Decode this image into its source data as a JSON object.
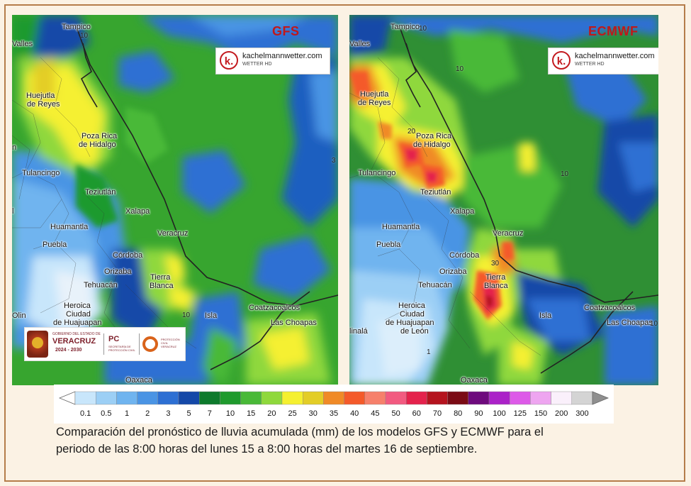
{
  "panels": {
    "gfs": {
      "title": "GFS",
      "brand_name": "kachelmannwetter.com",
      "brand_sub": "WETTER HD",
      "brand_letter": "k.",
      "cities": {
        "tampico": "Tampico",
        "valles": "Valles",
        "huejutla": "Huejutla",
        "de_reyes": "de Reyes",
        "poza_rica": "Poza Rica",
        "de_hidalgo": "de Hidalgo",
        "tulancingo": "Tulancingo",
        "teziutlan": "Teziutlán",
        "xalapa": "Xalapa",
        "huamantla": "Huamantla",
        "veracruz": "Veracruz",
        "puebla": "Puebla",
        "cordoba": "Córdoba",
        "orizaba": "Orizaba",
        "tierra": "Tierra",
        "blanca": "Blanca",
        "tehuacan": "Tehuacán",
        "heroica": "Heroica",
        "ciudad": "Ciudad",
        "de_huajuapan": "de Huajuapan",
        "isla": "Isla",
        "coatzacoalcos": "Coatzacoalcos",
        "las_choapas": "Las Choapas",
        "olin": "Olin",
        "oaxaca": "Oaxaca",
        "edge_n": "n",
        "edge_l": "l"
      },
      "contours": {
        "c10a": "10",
        "c10b": "10",
        "c3": "3"
      }
    },
    "ecmwf": {
      "title": "ECMWF",
      "brand_name": "kachelmannwetter.com",
      "brand_sub": "WETTER HD",
      "brand_letter": "k.",
      "cities": {
        "tampico": "Tampico",
        "valles": "Valles",
        "huejutla": "Huejutla",
        "de_reyes": "de Reyes",
        "poza_rica": "Poza Rica",
        "de_hidalgo": "de Hidalgo",
        "tulancingo": "Tulancingo",
        "teziutlan": "Teziutlán",
        "xalapa": "Xalapa",
        "huamantla": "Huamantla",
        "veracruz": "Veracruz",
        "puebla": "Puebla",
        "cordoba": "Córdoba",
        "orizaba": "Orizaba",
        "tierra": "Tierra",
        "blanca": "Blanca",
        "tehuacan": "Tehuacán",
        "heroica": "Heroica",
        "ciudad": "Ciudad",
        "de_huajuapan": "de Huajuapan",
        "de_leon": "de León",
        "isla": "Isla",
        "coatzacoalcos": "Coatzacoalcos",
        "las_choapas": "Las Choapas",
        "linala": "linalá",
        "oaxaca": "Oaxaca"
      },
      "contours": {
        "c10a": "10",
        "c10b": "10",
        "c10c": "10",
        "c20": "20",
        "c30": "30",
        "c1": "1",
        "c10d": "10"
      }
    }
  },
  "gov_logo": {
    "line1": "GOBIERNO DEL ESTADO DE",
    "line2": "VERACRUZ",
    "line3": "2024 - 2030",
    "pc": "PC",
    "pc_sub": "SECRETARÍA DE PROTECCIÓN CIVIL",
    "pc2_sub": "PROTECCIÓN CIVIL VERACRUZ"
  },
  "legend": {
    "unit": "mm",
    "ticks": [
      "0.1",
      "0.5",
      "1",
      "2",
      "3",
      "5",
      "7",
      "10",
      "15",
      "20",
      "25",
      "30",
      "35",
      "40",
      "45",
      "50",
      "60",
      "70",
      "80",
      "90",
      "100",
      "125",
      "150",
      "200",
      "300"
    ],
    "colors": [
      "#c8e6fb",
      "#9ccff5",
      "#6fb4ef",
      "#4a94e4",
      "#2d6fd3",
      "#1448a8",
      "#0d7a2c",
      "#1f9a2d",
      "#49b938",
      "#8fd83c",
      "#f5f030",
      "#e3cd27",
      "#f08a27",
      "#f45a2a",
      "#f6806b",
      "#f25a80",
      "#e4224c",
      "#b5131e",
      "#7b0b15",
      "#6e0a7d",
      "#ab22c8",
      "#dd5ae8",
      "#eea5f0",
      "#faf0fb",
      "#d4d4d4"
    ],
    "over_color": "#8f8f8f"
  },
  "caption": {
    "line1": "Comparación del pronóstico de lluvia acumulada (mm) de los modelos GFS y ECMWF para el",
    "line2": "periodo de las 8:00 horas del lunes 15 a 8:00 horas del martes 16 de septiembre."
  }
}
